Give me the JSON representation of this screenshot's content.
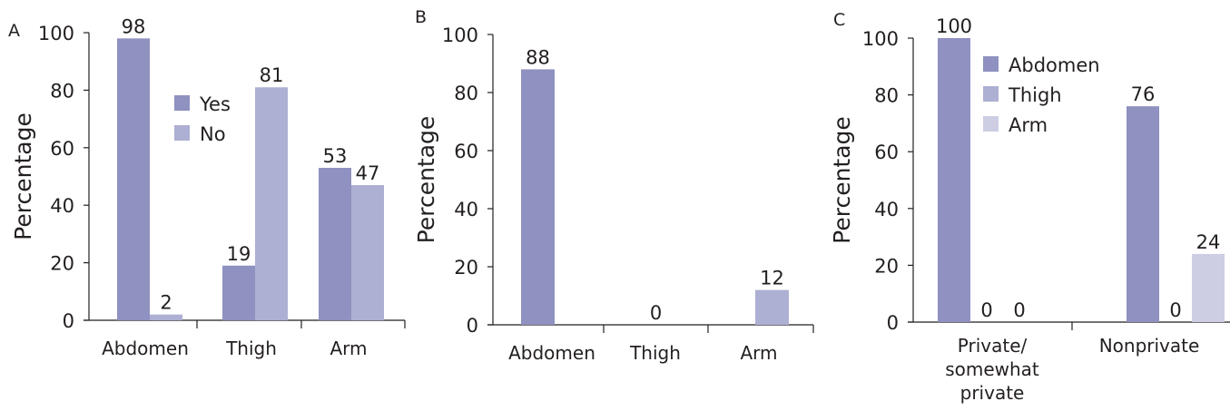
{
  "chart_data": [
    {
      "panel": "A",
      "type": "bar",
      "ylabel": "Percentage",
      "ylim": [
        0,
        100
      ],
      "yticks": [
        "0",
        "20",
        "40",
        "60",
        "80",
        "100"
      ],
      "categories": [
        "Abdomen",
        "Thigh",
        "Arm"
      ],
      "series": [
        {
          "name": "Yes",
          "values": [
            98,
            19,
            53
          ],
          "labels": [
            "98",
            "19",
            "53"
          ],
          "color": "#8f91c0"
        },
        {
          "name": "No",
          "values": [
            2,
            81,
            47
          ],
          "labels": [
            "2",
            "81",
            "47"
          ],
          "color": "#adb0d2"
        }
      ],
      "legend": "upper-center"
    },
    {
      "panel": "B",
      "type": "bar",
      "ylabel": "Percentage",
      "ylim": [
        0,
        100
      ],
      "yticks": [
        "0",
        "20",
        "40",
        "60",
        "80",
        "100"
      ],
      "categories": [
        "Abdomen",
        "Thigh",
        "Arm"
      ],
      "values": [
        88,
        0,
        12
      ],
      "labels": [
        "88",
        "0",
        "12"
      ],
      "colors": [
        "#8f91c0",
        "#adb0d2",
        "#adb0d2"
      ]
    },
    {
      "panel": "C",
      "type": "bar",
      "ylabel": "Percentage",
      "ylim": [
        0,
        100
      ],
      "yticks": [
        "0",
        "20",
        "40",
        "60",
        "80",
        "100"
      ],
      "categories": [
        [
          "Private/",
          "somewhat",
          "private"
        ],
        [
          "Nonprivate"
        ]
      ],
      "series": [
        {
          "name": "Abdomen",
          "values": [
            100,
            76
          ],
          "labels": [
            "100",
            "76"
          ],
          "color": "#8f91c0"
        },
        {
          "name": "Thigh",
          "values": [
            0,
            0
          ],
          "labels": [
            "0",
            "0"
          ],
          "color": "#adb0d2"
        },
        {
          "name": "Arm",
          "values": [
            0,
            24
          ],
          "labels": [
            "0",
            "24"
          ],
          "color": "#cdcee4"
        }
      ],
      "legend": "top-center"
    }
  ]
}
